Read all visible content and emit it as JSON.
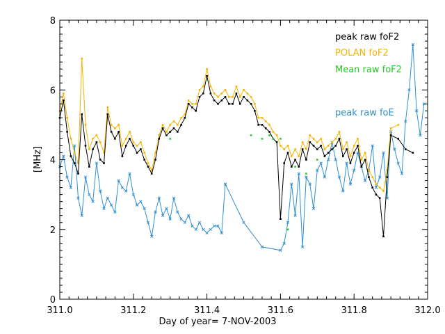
{
  "chart_data": {
    "type": "line",
    "title": "",
    "xlabel": "Day of year= 7-NOV-2003",
    "ylabel": "[MHz]",
    "xlim": [
      311.0,
      312.0
    ],
    "ylim": [
      0,
      8
    ],
    "xticks": [
      311.0,
      311.2,
      311.4,
      311.6,
      311.8,
      312.0
    ],
    "xtick_labels": [
      "311.0",
      "311.2",
      "311.4",
      "311.6",
      "311.8",
      "312.0"
    ],
    "yticks": [
      0,
      2,
      4,
      6,
      8
    ],
    "ytick_labels": [
      "0",
      "2",
      "4",
      "6",
      "8"
    ],
    "grid": false,
    "legend_position": "top-right",
    "series": [
      {
        "name": "peak raw foF2",
        "color": "#000000",
        "x": [
          311.0,
          311.01,
          311.02,
          311.03,
          311.04,
          311.05,
          311.06,
          311.07,
          311.08,
          311.09,
          311.1,
          311.11,
          311.12,
          311.13,
          311.14,
          311.15,
          311.16,
          311.17,
          311.18,
          311.19,
          311.2,
          311.21,
          311.22,
          311.23,
          311.24,
          311.25,
          311.26,
          311.27,
          311.28,
          311.29,
          311.3,
          311.31,
          311.32,
          311.33,
          311.34,
          311.35,
          311.36,
          311.37,
          311.38,
          311.39,
          311.4,
          311.41,
          311.42,
          311.43,
          311.44,
          311.45,
          311.46,
          311.47,
          311.48,
          311.49,
          311.5,
          311.51,
          311.52,
          311.53,
          311.54,
          311.55,
          311.56,
          311.57,
          311.58,
          311.59,
          311.6,
          311.61,
          311.62,
          311.63,
          311.64,
          311.65,
          311.66,
          311.67,
          311.68,
          311.69,
          311.7,
          311.71,
          311.72,
          311.73,
          311.74,
          311.75,
          311.76,
          311.77,
          311.78,
          311.79,
          311.8,
          311.81,
          311.82,
          311.83,
          311.84,
          311.85,
          311.86,
          311.87,
          311.88,
          311.89,
          311.9,
          311.92,
          311.94,
          311.96
        ],
        "values": [
          5.2,
          5.7,
          4.8,
          4.1,
          3.9,
          3.6,
          5.3,
          4.4,
          3.8,
          4.3,
          4.5,
          4.0,
          3.9,
          5.3,
          4.8,
          4.6,
          4.8,
          4.1,
          4.4,
          4.6,
          4.4,
          4.2,
          4.3,
          4.0,
          3.8,
          3.6,
          4.0,
          4.6,
          4.9,
          4.7,
          4.8,
          4.9,
          4.8,
          5.0,
          5.2,
          5.6,
          5.5,
          5.4,
          5.8,
          5.9,
          6.4,
          5.9,
          5.7,
          5.6,
          5.7,
          5.8,
          5.6,
          5.6,
          5.9,
          5.6,
          5.8,
          5.7,
          5.6,
          5.4,
          5.0,
          5.0,
          4.9,
          4.8,
          4.6,
          4.5,
          2.3,
          3.9,
          4.2,
          3.8,
          4.0,
          3.8,
          4.3,
          4.0,
          4.5,
          4.4,
          4.3,
          4.4,
          4.1,
          4.2,
          4.3,
          4.4,
          4.6,
          4.1,
          4.3,
          3.9,
          4.2,
          4.4,
          3.8,
          4.0,
          3.5,
          3.2,
          3.0,
          2.9,
          1.8,
          3.5,
          4.7,
          4.6,
          4.3,
          4.2
        ]
      },
      {
        "name": "POLAN foF2",
        "color": "#f6b400",
        "x": [
          311.0,
          311.01,
          311.02,
          311.03,
          311.04,
          311.05,
          311.06,
          311.07,
          311.08,
          311.09,
          311.1,
          311.11,
          311.12,
          311.13,
          311.14,
          311.15,
          311.16,
          311.17,
          311.18,
          311.19,
          311.2,
          311.21,
          311.22,
          311.23,
          311.24,
          311.25,
          311.26,
          311.27,
          311.28,
          311.29,
          311.3,
          311.31,
          311.32,
          311.33,
          311.34,
          311.35,
          311.36,
          311.37,
          311.38,
          311.39,
          311.4,
          311.41,
          311.42,
          311.43,
          311.44,
          311.45,
          311.46,
          311.47,
          311.48,
          311.49,
          311.5,
          311.51,
          311.52,
          311.53,
          311.54,
          311.55,
          311.56,
          311.57,
          311.58,
          311.59,
          311.6,
          311.61,
          311.62,
          311.63,
          311.64,
          311.65,
          311.66,
          311.67,
          311.68,
          311.69,
          311.7,
          311.71,
          311.72,
          311.73,
          311.74,
          311.75,
          311.76,
          311.77,
          311.78,
          311.79,
          311.8,
          311.81,
          311.82,
          311.83,
          311.84,
          311.85,
          311.86,
          311.87,
          311.88,
          311.89,
          311.9,
          311.92
        ],
        "values": [
          5.4,
          5.9,
          5.2,
          4.6,
          4.2,
          3.9,
          6.9,
          5.0,
          4.3,
          4.6,
          4.7,
          4.5,
          4.2,
          5.5,
          5.0,
          4.9,
          5.0,
          4.4,
          4.6,
          4.8,
          4.5,
          4.4,
          4.5,
          4.2,
          3.9,
          3.7,
          4.2,
          4.7,
          5.0,
          4.8,
          5.0,
          5.1,
          5.0,
          5.2,
          5.3,
          5.7,
          5.6,
          5.6,
          6.0,
          6.1,
          6.6,
          6.1,
          5.9,
          5.8,
          5.9,
          6.0,
          5.8,
          5.8,
          6.1,
          5.8,
          6.0,
          5.9,
          5.8,
          5.6,
          5.2,
          5.2,
          5.1,
          5.0,
          4.8,
          4.7,
          4.4,
          4.3,
          4.4,
          4.1,
          4.3,
          4.1,
          4.5,
          4.3,
          4.7,
          4.6,
          4.5,
          4.6,
          4.3,
          4.4,
          4.5,
          4.6,
          4.8,
          4.3,
          4.5,
          4.1,
          4.4,
          4.6,
          4.0,
          4.2,
          3.7,
          3.5,
          3.3,
          3.2,
          3.1,
          3.7,
          4.9,
          5.0
        ]
      },
      {
        "name": "Mean raw foF2",
        "color": "#22cc22",
        "x": [
          311.3,
          311.52,
          311.55,
          311.57,
          311.58,
          311.6,
          311.62,
          311.64,
          311.67,
          311.7
        ],
        "values": [
          4.6,
          4.7,
          4.6,
          4.7,
          4.6,
          4.6,
          2.0,
          3.8,
          3.6,
          4.0
        ]
      },
      {
        "name": "peak raw foE",
        "color": "#2f8fd0",
        "x": [
          311.0,
          311.01,
          311.02,
          311.03,
          311.04,
          311.05,
          311.06,
          311.07,
          311.08,
          311.09,
          311.1,
          311.11,
          311.12,
          311.13,
          311.14,
          311.15,
          311.16,
          311.17,
          311.18,
          311.19,
          311.2,
          311.21,
          311.22,
          311.23,
          311.24,
          311.25,
          311.26,
          311.27,
          311.28,
          311.29,
          311.3,
          311.31,
          311.32,
          311.33,
          311.34,
          311.35,
          311.36,
          311.37,
          311.38,
          311.39,
          311.4,
          311.41,
          311.42,
          311.43,
          311.44,
          311.45,
          311.5,
          311.55,
          311.6,
          311.61,
          311.62,
          311.63,
          311.64,
          311.65,
          311.66,
          311.67,
          311.68,
          311.69,
          311.7,
          311.71,
          311.72,
          311.73,
          311.74,
          311.75,
          311.76,
          311.77,
          311.78,
          311.79,
          311.8,
          311.81,
          311.82,
          311.83,
          311.84,
          311.85,
          311.86,
          311.87,
          311.88,
          311.89,
          311.9,
          311.91,
          311.92,
          311.93,
          311.94,
          311.95,
          311.96,
          311.97,
          311.98,
          311.99
        ],
        "values": [
          3.8,
          4.1,
          3.5,
          3.2,
          4.4,
          2.9,
          2.4,
          3.5,
          3.0,
          2.8,
          3.9,
          3.1,
          2.6,
          2.9,
          2.7,
          2.5,
          3.4,
          3.2,
          3.1,
          3.6,
          3.0,
          2.7,
          2.8,
          2.6,
          2.2,
          1.8,
          2.5,
          2.9,
          2.4,
          2.6,
          2.3,
          2.9,
          2.5,
          2.3,
          2.2,
          2.4,
          2.1,
          2.0,
          2.2,
          2.0,
          1.9,
          2.0,
          2.1,
          2.1,
          1.9,
          3.3,
          2.2,
          1.5,
          1.4,
          1.6,
          2.2,
          3.3,
          2.4,
          3.6,
          1.5,
          3.5,
          3.3,
          2.6,
          3.7,
          3.9,
          3.5,
          4.0,
          4.5,
          4.0,
          3.5,
          3.1,
          3.9,
          3.3,
          3.7,
          4.2,
          3.8,
          3.4,
          3.7,
          4.4,
          3.2,
          3.5,
          4.2,
          2.9,
          4.8,
          4.3,
          3.9,
          3.6,
          5.1,
          6.0,
          7.3,
          5.4,
          4.7,
          5.6
        ]
      }
    ],
    "annotations": []
  }
}
